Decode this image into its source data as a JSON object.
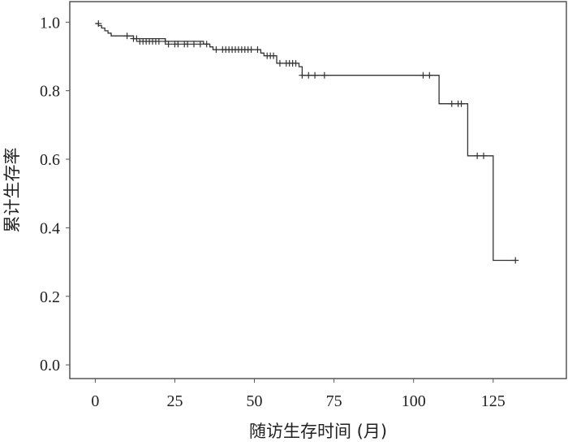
{
  "chart_data": {
    "type": "line",
    "subtype": "kaplan-meier",
    "title": "",
    "xlabel": "随访生存时间 (月)",
    "ylabel": "累计生存率",
    "xlim": [
      -8,
      148
    ],
    "ylim": [
      -0.04,
      1.06
    ],
    "x_ticks": [
      0,
      25,
      50,
      75,
      100,
      125
    ],
    "y_ticks": [
      0.0,
      0.2,
      0.4,
      0.6,
      0.8,
      1.0
    ],
    "x_tick_labels": [
      "0",
      "25",
      "50",
      "75",
      "100",
      "125"
    ],
    "y_tick_labels": [
      "0.0",
      "0.2",
      "0.4",
      "0.6",
      "0.8",
      "1.0"
    ],
    "grid": false,
    "line_color": "#333333",
    "series": [
      {
        "steps": [
          [
            0,
            0.996
          ],
          [
            1,
            0.99
          ],
          [
            2,
            0.983
          ],
          [
            3,
            0.975
          ],
          [
            4,
            0.968
          ],
          [
            5,
            0.96
          ],
          [
            12,
            0.952
          ],
          [
            22,
            0.944
          ],
          [
            34,
            0.936
          ],
          [
            36,
            0.928
          ],
          [
            37,
            0.92
          ],
          [
            50,
            0.92
          ],
          [
            52,
            0.91
          ],
          [
            53,
            0.902
          ],
          [
            57,
            0.88
          ],
          [
            64,
            0.87
          ],
          [
            65,
            0.845
          ],
          [
            108,
            0.762
          ],
          [
            117,
            0.61
          ],
          [
            125,
            0.305
          ],
          [
            132,
            0.305
          ]
        ],
        "censored": [
          [
            1,
            0.996
          ],
          [
            10,
            0.96
          ],
          [
            12,
            0.952
          ],
          [
            13,
            0.952
          ],
          [
            14,
            0.944
          ],
          [
            15,
            0.944
          ],
          [
            16,
            0.944
          ],
          [
            17,
            0.944
          ],
          [
            18,
            0.944
          ],
          [
            19,
            0.944
          ],
          [
            20,
            0.944
          ],
          [
            22,
            0.944
          ],
          [
            23,
            0.936
          ],
          [
            25,
            0.936
          ],
          [
            26,
            0.936
          ],
          [
            28,
            0.936
          ],
          [
            29,
            0.936
          ],
          [
            31,
            0.936
          ],
          [
            33,
            0.936
          ],
          [
            35,
            0.936
          ],
          [
            38,
            0.92
          ],
          [
            40,
            0.92
          ],
          [
            41,
            0.92
          ],
          [
            42,
            0.92
          ],
          [
            43,
            0.92
          ],
          [
            44,
            0.92
          ],
          [
            45,
            0.92
          ],
          [
            46,
            0.92
          ],
          [
            47,
            0.92
          ],
          [
            48,
            0.92
          ],
          [
            49,
            0.92
          ],
          [
            51,
            0.92
          ],
          [
            54,
            0.902
          ],
          [
            55,
            0.902
          ],
          [
            56,
            0.902
          ],
          [
            58,
            0.88
          ],
          [
            60,
            0.88
          ],
          [
            61,
            0.88
          ],
          [
            62,
            0.88
          ],
          [
            63,
            0.88
          ],
          [
            65,
            0.845
          ],
          [
            67,
            0.845
          ],
          [
            69,
            0.845
          ],
          [
            72,
            0.845
          ],
          [
            103,
            0.845
          ],
          [
            105,
            0.845
          ],
          [
            112,
            0.762
          ],
          [
            114,
            0.762
          ],
          [
            115,
            0.762
          ],
          [
            120,
            0.61
          ],
          [
            122,
            0.61
          ],
          [
            132,
            0.305
          ]
        ]
      }
    ]
  }
}
